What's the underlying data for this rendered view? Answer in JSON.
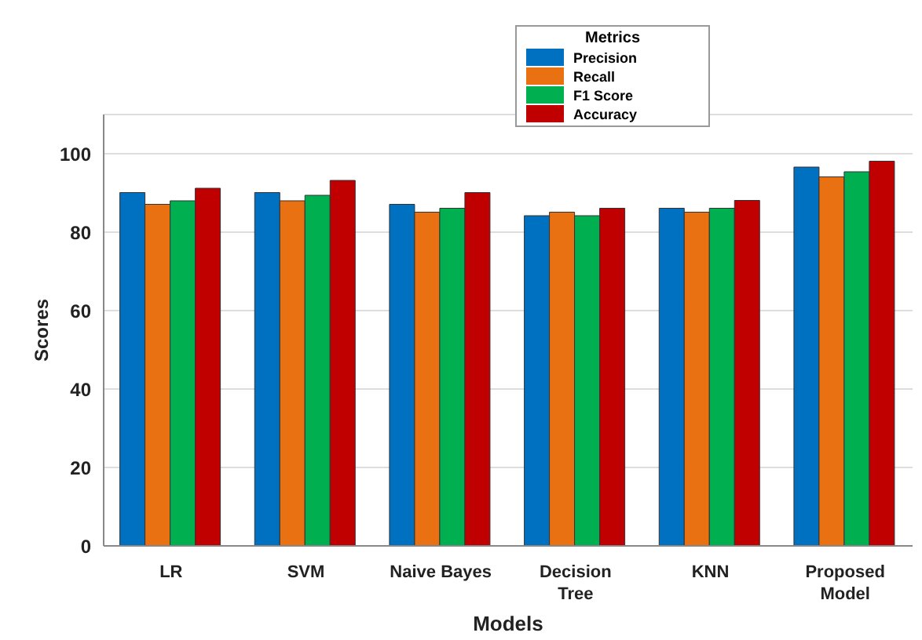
{
  "chart_data": {
    "type": "bar",
    "xlabel": "Models",
    "ylabel": "Scores",
    "legend_title": "Metrics",
    "categories": [
      "LR",
      "SVM",
      "Naive Bayes",
      "Decision Tree",
      "KNN",
      "Proposed Model"
    ],
    "series": [
      {
        "name": "Precision",
        "color": "#0070c0",
        "values": [
          90.1,
          90.1,
          87.1,
          84.2,
          86.1,
          96.6
        ]
      },
      {
        "name": "Recall",
        "color": "#e97111",
        "values": [
          87.1,
          88.0,
          85.1,
          85.1,
          85.1,
          94.1
        ]
      },
      {
        "name": "F1 Score",
        "color": "#00b050",
        "values": [
          88.0,
          89.4,
          86.1,
          84.2,
          86.1,
          95.4
        ]
      },
      {
        "name": "Accuracy",
        "color": "#c00000",
        "values": [
          91.2,
          93.2,
          90.1,
          86.1,
          88.1,
          98.1
        ]
      }
    ],
    "ylim": [
      0,
      110
    ],
    "yticks": [
      0,
      20,
      40,
      60,
      80,
      100
    ],
    "grid": "y",
    "legend": "top"
  }
}
